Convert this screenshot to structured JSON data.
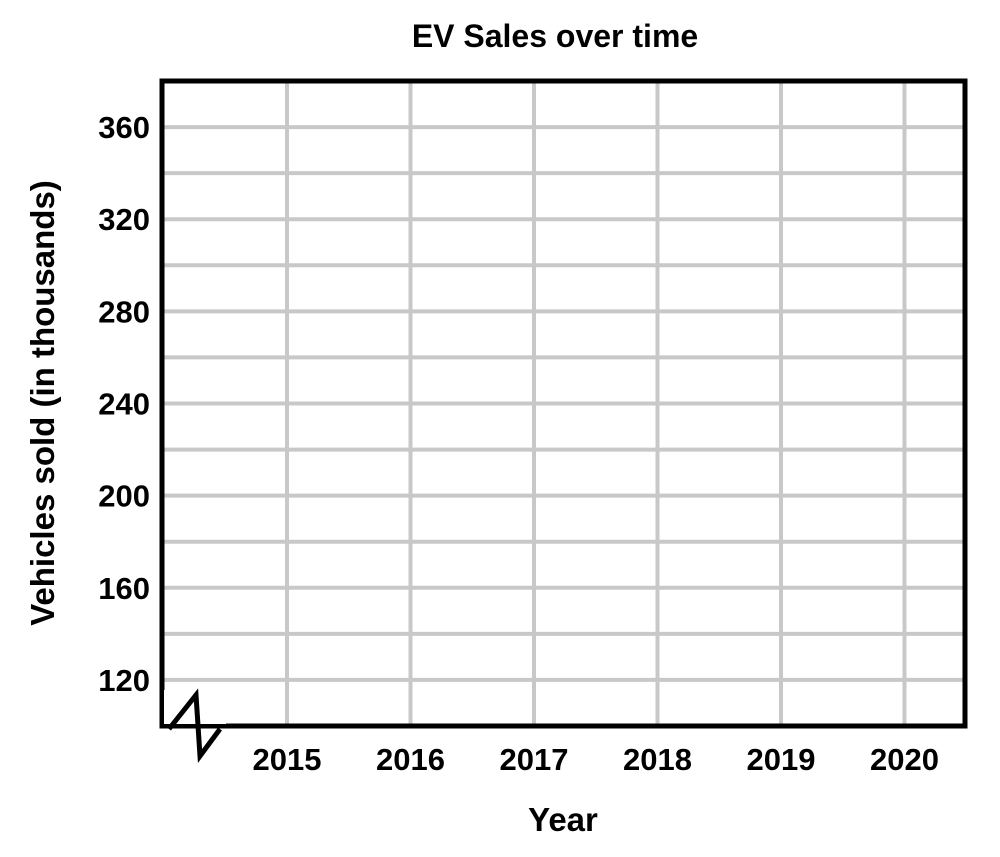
{
  "chart_data": {
    "type": "line",
    "title": "EV Sales over time",
    "xlabel": "Year",
    "ylabel": "Vehicles sold (in thousands)",
    "categories": [
      "2015",
      "2016",
      "2017",
      "2018",
      "2019",
      "2020"
    ],
    "y_ticks": [
      "120",
      "160",
      "200",
      "240",
      "280",
      "320",
      "360"
    ],
    "ylim": [
      100,
      380
    ],
    "y_minor_step": 20,
    "y_axis_break": true,
    "grid": true,
    "series": [],
    "colors": {
      "grid": "#c8c8c8",
      "frame": "#000000"
    }
  }
}
